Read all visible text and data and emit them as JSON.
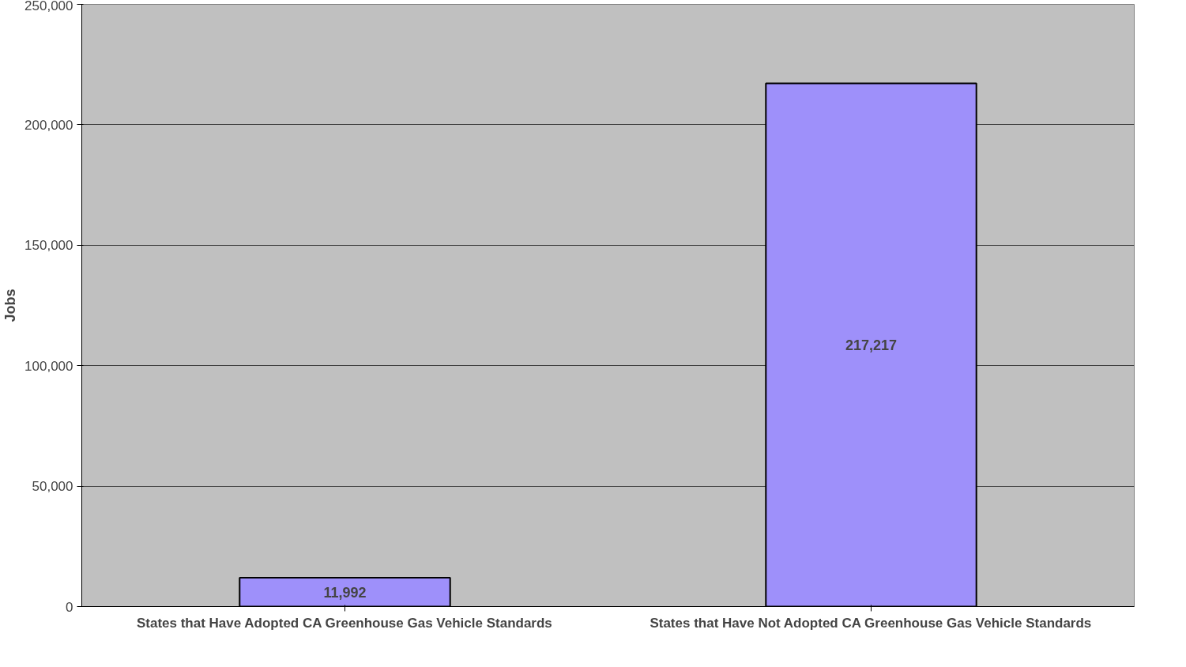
{
  "chart_data": {
    "type": "bar",
    "ylabel": "Jobs",
    "categories": [
      "States that Have Adopted CA Greenhouse Gas Vehicle Standards",
      "States that Have Not Adopted CA Greenhouse Gas Vehicle Standards"
    ],
    "values": [
      11992,
      217217
    ],
    "color": "#9e90fa",
    "value_labels": [
      "11,992",
      "217,217"
    ],
    "ylim": [
      0,
      250000
    ],
    "yticks": [
      {
        "value": 0,
        "label": "0"
      },
      {
        "value": 50000,
        "label": "50,000"
      },
      {
        "value": 100000,
        "label": "100,000"
      },
      {
        "value": 150000,
        "label": "150,000"
      },
      {
        "value": 200000,
        "label": "200,000"
      },
      {
        "value": 250000,
        "label": "250,000"
      }
    ],
    "grid": "y"
  }
}
